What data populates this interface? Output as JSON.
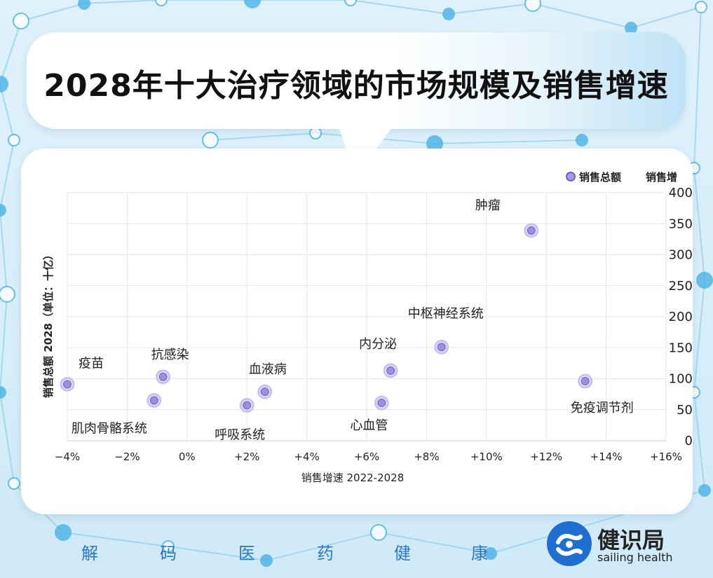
{
  "title": "2028年十大治疗领域的市场规模及销售增速",
  "chart_data": {
    "type": "scatter",
    "title": "2028年十大治疗领域的市场规模及销售增速",
    "xlabel": "销售增速 2022-2028",
    "ylabel": "销售总额 2028（单位：十亿）",
    "xlim": [
      -4,
      16
    ],
    "ylim": [
      0,
      400
    ],
    "x_ticks": [
      -4,
      -2,
      0,
      2,
      4,
      6,
      8,
      10,
      12,
      14,
      16
    ],
    "x_tick_labels": [
      "−4%",
      "−2%",
      "0%",
      "+2%",
      "+4%",
      "+6%",
      "+8%",
      "+10%",
      "+12%",
      "+14%",
      "+16%"
    ],
    "y_ticks": [
      0,
      50,
      100,
      150,
      200,
      250,
      300,
      350,
      400
    ],
    "y_tick_labels": [
      "0",
      "50",
      "100",
      "150",
      "200",
      "250",
      "300",
      "350",
      "400"
    ],
    "legend": [
      "销售总额",
      "销售增"
    ],
    "legend_position": "top-right",
    "series": [
      {
        "name": "销售总额",
        "color": "#8a7fd6",
        "points": [
          {
            "x": -4.0,
            "y": 91,
            "label": "疫苗"
          },
          {
            "x": -0.8,
            "y": 103,
            "label": "抗感染"
          },
          {
            "x": -1.1,
            "y": 65,
            "label": "肌肉骨骼系统"
          },
          {
            "x": 2.6,
            "y": 79,
            "label": "血液病"
          },
          {
            "x": 2.0,
            "y": 57,
            "label": "呼吸系统"
          },
          {
            "x": 6.8,
            "y": 113,
            "label": "内分泌"
          },
          {
            "x": 6.5,
            "y": 61,
            "label": "心血管"
          },
          {
            "x": 8.5,
            "y": 151,
            "label": "中枢神经系统"
          },
          {
            "x": 11.5,
            "y": 339,
            "label": "肿瘤"
          },
          {
            "x": 13.3,
            "y": 96,
            "label": "免疫调节剂"
          }
        ]
      }
    ]
  },
  "footer": {
    "words": [
      "解",
      "码",
      "医",
      "药",
      "健",
      "康"
    ],
    "logo_cn": "健识局",
    "logo_en": "sailing health"
  }
}
